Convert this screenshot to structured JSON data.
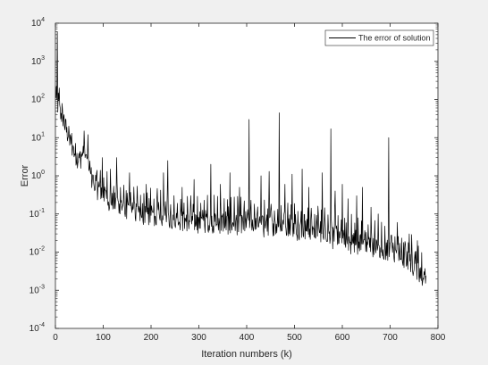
{
  "chart_data": {
    "type": "line",
    "title": "",
    "xlabel": "Iteration numbers (k)",
    "ylabel": "Error",
    "xlim": [
      0,
      800
    ],
    "ylim": [
      0.0001,
      10000
    ],
    "yscale": "log",
    "grid": false,
    "legend_position": "top-right",
    "x_ticks": [
      0,
      100,
      200,
      300,
      400,
      500,
      600,
      700,
      800
    ],
    "x_tick_labels": [
      "0",
      "100",
      "200",
      "300",
      "400",
      "500",
      "600",
      "700",
      "800"
    ],
    "y_ticks": [
      0.0001,
      0.001,
      0.01,
      0.1,
      1,
      10,
      100,
      1000,
      10000
    ],
    "y_tick_labels": [
      {
        "base": "10",
        "exp": "-4"
      },
      {
        "base": "10",
        "exp": "-3"
      },
      {
        "base": "10",
        "exp": "-2"
      },
      {
        "base": "10",
        "exp": "-1"
      },
      {
        "base": "10",
        "exp": "0"
      },
      {
        "base": "10",
        "exp": "1"
      },
      {
        "base": "10",
        "exp": "2"
      },
      {
        "base": "10",
        "exp": "3"
      },
      {
        "base": "10",
        "exp": "4"
      }
    ],
    "series": [
      {
        "name": "The error of solution",
        "color": "#000000",
        "baseline": {
          "x": [
            0,
            10,
            20,
            30,
            40,
            50,
            60,
            70,
            80,
            100,
            120,
            140,
            160,
            180,
            200,
            250,
            300,
            350,
            400,
            450,
            500,
            550,
            575,
            600,
            650,
            700,
            750,
            775
          ],
          "y": [
            100,
            50,
            20,
            8,
            4,
            2.5,
            4,
            1.5,
            0.6,
            0.3,
            0.2,
            0.15,
            0.12,
            0.1,
            0.09,
            0.07,
            0.06,
            0.055,
            0.05,
            0.05,
            0.045,
            0.035,
            0.03,
            0.02,
            0.015,
            0.01,
            0.005,
            0.0015
          ]
        },
        "spikes": [
          {
            "x": 4,
            "y": 6000
          },
          {
            "x": 8,
            "y": 200
          },
          {
            "x": 18,
            "y": 40
          },
          {
            "x": 60,
            "y": 15
          },
          {
            "x": 68,
            "y": 12
          },
          {
            "x": 98,
            "y": 3
          },
          {
            "x": 115,
            "y": 1.5
          },
          {
            "x": 128,
            "y": 3
          },
          {
            "x": 155,
            "y": 1.2
          },
          {
            "x": 190,
            "y": 0.6
          },
          {
            "x": 226,
            "y": 1.2
          },
          {
            "x": 235,
            "y": 2.5
          },
          {
            "x": 265,
            "y": 0.5
          },
          {
            "x": 290,
            "y": 0.8
          },
          {
            "x": 325,
            "y": 2.0
          },
          {
            "x": 345,
            "y": 0.6
          },
          {
            "x": 365,
            "y": 1.2
          },
          {
            "x": 385,
            "y": 0.5
          },
          {
            "x": 405,
            "y": 30
          },
          {
            "x": 430,
            "y": 1.0
          },
          {
            "x": 447,
            "y": 1.3
          },
          {
            "x": 468,
            "y": 45
          },
          {
            "x": 480,
            "y": 0.6
          },
          {
            "x": 495,
            "y": 1.1
          },
          {
            "x": 516,
            "y": 1.5
          },
          {
            "x": 530,
            "y": 0.5
          },
          {
            "x": 558,
            "y": 1.2
          },
          {
            "x": 576,
            "y": 17
          },
          {
            "x": 585,
            "y": 0.4
          },
          {
            "x": 600,
            "y": 0.6
          },
          {
            "x": 612,
            "y": 0.25
          },
          {
            "x": 630,
            "y": 0.3
          },
          {
            "x": 642,
            "y": 0.5
          },
          {
            "x": 660,
            "y": 0.15
          },
          {
            "x": 675,
            "y": 0.1
          },
          {
            "x": 697,
            "y": 10
          },
          {
            "x": 715,
            "y": 0.06
          },
          {
            "x": 740,
            "y": 0.03
          },
          {
            "x": 757,
            "y": 0.02
          }
        ]
      }
    ]
  }
}
